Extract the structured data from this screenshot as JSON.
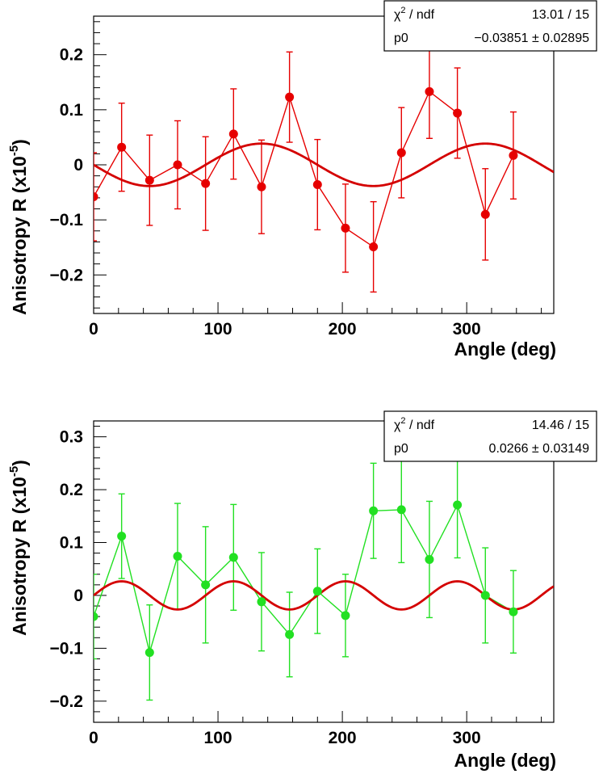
{
  "chart_data": [
    {
      "type": "scatter",
      "title": "",
      "xlabel": "Angle (deg)",
      "ylabel": "Anisotropy R (x10",
      "ylabel_exponent": "-5",
      "ylabel_close": ")",
      "xlim": [
        0,
        370
      ],
      "ylim": [
        -0.27,
        0.27
      ],
      "xticks": [
        0,
        100,
        200,
        300
      ],
      "xtick_labels": [
        "0",
        "100",
        "200",
        "300"
      ],
      "yticks": [
        -0.2,
        -0.1,
        0,
        0.1,
        0.2
      ],
      "ytick_labels": [
        "−0.2",
        "−0.1",
        "0",
        "0.1",
        "0.2"
      ],
      "grid": false,
      "marker_color": "#e60000",
      "fit_color": "#d40000",
      "series": [
        {
          "x": [
            0,
            22.5,
            45,
            67.5,
            90,
            112.5,
            135,
            157.5,
            180,
            202.5,
            225,
            247.5,
            270,
            292.5,
            315,
            337.5
          ],
          "y": [
            -0.058,
            0.032,
            -0.028,
            0.0,
            -0.034,
            0.056,
            -0.04,
            0.123,
            -0.036,
            -0.115,
            -0.149,
            0.022,
            0.133,
            0.094,
            -0.09,
            0.017
          ],
          "yerr": [
            0.08,
            0.08,
            0.082,
            0.08,
            0.085,
            0.082,
            0.085,
            0.082,
            0.082,
            0.08,
            0.082,
            0.082,
            0.085,
            0.082,
            0.083,
            0.079
          ]
        }
      ],
      "fit": {
        "p0": -0.03851,
        "form": "p0*sin(2*x deg)"
      },
      "stats": {
        "row1_label": "χ",
        "row1_sup": "2",
        "row1_label_rest": " / ndf",
        "row1_value": "13.01 / 15",
        "row2_label": "p0",
        "row2_value": "−0.03851 ± 0.02895"
      }
    },
    {
      "type": "scatter",
      "title": "",
      "xlabel": "Angle (deg)",
      "ylabel": "Anisotropy R (x10",
      "ylabel_exponent": "-5",
      "ylabel_close": ")",
      "xlim": [
        0,
        370
      ],
      "ylim": [
        -0.24,
        0.33
      ],
      "xticks": [
        0,
        100,
        200,
        300
      ],
      "xtick_labels": [
        "0",
        "100",
        "200",
        "300"
      ],
      "yticks": [
        -0.2,
        -0.1,
        0,
        0.1,
        0.2,
        0.3
      ],
      "ytick_labels": [
        "−0.2",
        "−0.1",
        "0",
        "0.1",
        "0.2",
        "0.3"
      ],
      "grid": false,
      "marker_color": "#22e022",
      "fit_color": "#d40000",
      "series": [
        {
          "x": [
            0,
            22.5,
            45,
            67.5,
            90,
            112.5,
            135,
            157.5,
            180,
            202.5,
            225,
            247.5,
            270,
            292.5,
            315,
            337.5
          ],
          "y": [
            -0.04,
            0.112,
            -0.108,
            0.074,
            0.02,
            0.072,
            -0.012,
            -0.074,
            0.008,
            -0.038,
            0.16,
            0.162,
            0.068,
            0.171,
            0.0,
            -0.031
          ],
          "yerr": [
            0.08,
            0.08,
            0.09,
            0.1,
            0.11,
            0.1,
            0.093,
            0.08,
            0.08,
            0.078,
            0.09,
            0.1,
            0.11,
            0.1,
            0.09,
            0.078
          ]
        }
      ],
      "fit": {
        "p0": 0.0266,
        "form": "p0*sin(4*x deg)"
      },
      "stats": {
        "row1_label": "χ",
        "row1_sup": "2",
        "row1_label_rest": " / ndf",
        "row1_value": "14.46 / 15",
        "row2_label": "p0",
        "row2_value": "0.0266 ± 0.03149"
      }
    }
  ]
}
